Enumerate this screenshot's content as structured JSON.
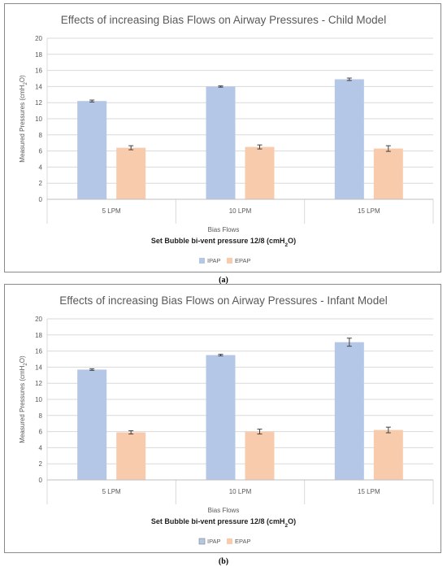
{
  "captions": [
    "(a)",
    "(b)"
  ],
  "chart_data": [
    {
      "type": "bar",
      "title": "Effects of increasing Bias Flows on Airway Pressures - Child Model",
      "xlabel": "Bias Flows",
      "subtitle": "Set Bubble bi-vent pressure 12/8 (cmH",
      "subtitle_sub": "2",
      "subtitle_end": "O)",
      "ylabel": "Measured Pressures  (cmH",
      "ylabel_sub": "2",
      "ylabel_end": "O)",
      "ylim": [
        0,
        20
      ],
      "yticks": [
        0,
        2,
        4,
        6,
        8,
        10,
        12,
        14,
        16,
        18,
        20
      ],
      "categories": [
        "5 LPM",
        "10 LPM",
        "15 LPM"
      ],
      "series": [
        {
          "name": "IPAP",
          "color": "#b4c7e7",
          "values": [
            12.2,
            14.0,
            14.9
          ],
          "errors": [
            0.12,
            0.08,
            0.15
          ]
        },
        {
          "name": "EPAP",
          "color": "#f8cbad",
          "values": [
            6.4,
            6.5,
            6.3
          ],
          "errors": [
            0.25,
            0.25,
            0.35
          ]
        }
      ],
      "legend": "bottom",
      "grid": true
    },
    {
      "type": "bar",
      "title": "Effects of increasing Bias Flows on Airway Pressures - Infant Model",
      "xlabel": "Bias Flows",
      "subtitle": "Set Bubble bi-vent pressure 12/8 (cmH",
      "subtitle_sub": "2",
      "subtitle_end": "O)",
      "ylabel": "Measured Pressures  (cmH",
      "ylabel_sub": "2",
      "ylabel_end": "O)",
      "ylim": [
        0,
        20
      ],
      "yticks": [
        0,
        2,
        4,
        6,
        8,
        10,
        12,
        14,
        16,
        18,
        20
      ],
      "categories": [
        "5 LPM",
        "10 LPM",
        "15 LPM"
      ],
      "series": [
        {
          "name": "IPAP",
          "color": "#b4c7e7",
          "values": [
            13.7,
            15.5,
            17.1
          ],
          "errors": [
            0.1,
            0.1,
            0.5
          ]
        },
        {
          "name": "EPAP",
          "color": "#f8cbad",
          "values": [
            5.9,
            6.0,
            6.2
          ],
          "errors": [
            0.2,
            0.3,
            0.35
          ]
        }
      ],
      "legend": "bottom",
      "grid": true
    }
  ]
}
